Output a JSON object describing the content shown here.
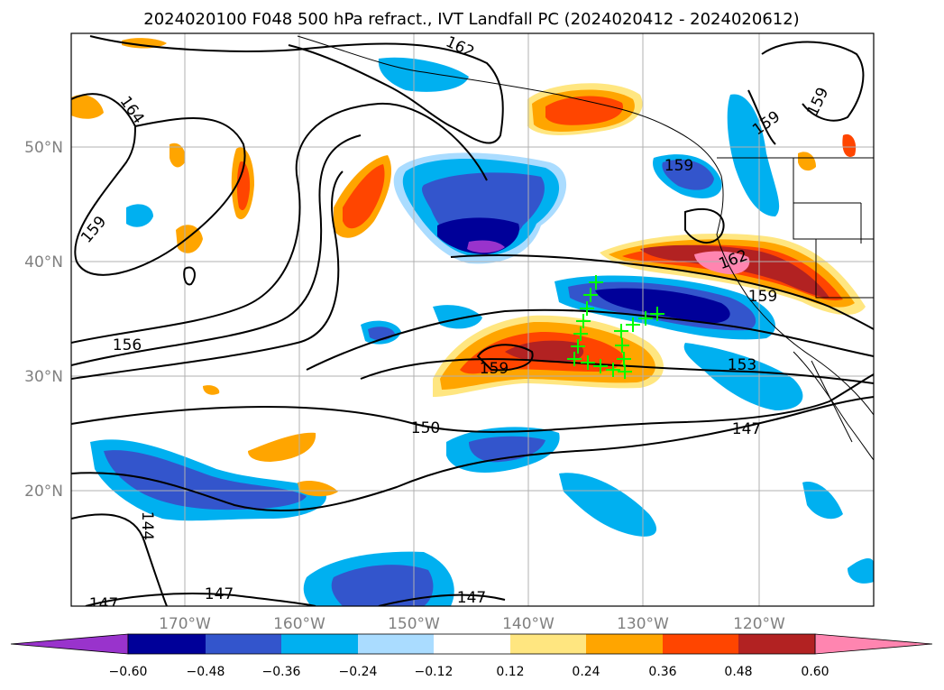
{
  "title": "2024020100 F048 500 hPa refract., IVT Landfall PC (2024020412 - 2024020612)",
  "map": {
    "lat_ticks": [
      "50°N",
      "40°N",
      "30°N",
      "20°N"
    ],
    "lon_ticks": [
      "170°W",
      "160°W",
      "150°W",
      "140°W",
      "130°W",
      "120°W"
    ],
    "contour_labels": [
      "162",
      "164",
      "159",
      "156",
      "159",
      "150",
      "147",
      "144",
      "147",
      "147",
      "147",
      "153",
      "159",
      "162",
      "159",
      "159",
      "159"
    ],
    "marker_color": "#00ff00"
  },
  "colorbar": {
    "ticks": [
      "−0.60",
      "−0.48",
      "−0.36",
      "−0.24",
      "−0.12",
      "0.12",
      "0.24",
      "0.36",
      "0.48",
      "0.60"
    ],
    "colors": [
      "#9933cc",
      "#000099",
      "#3355cc",
      "#00b0f0",
      "#aadcff",
      "#ffffff",
      "#ffe680",
      "#ffa500",
      "#ff4500",
      "#b22222",
      "#ff85b0"
    ]
  }
}
